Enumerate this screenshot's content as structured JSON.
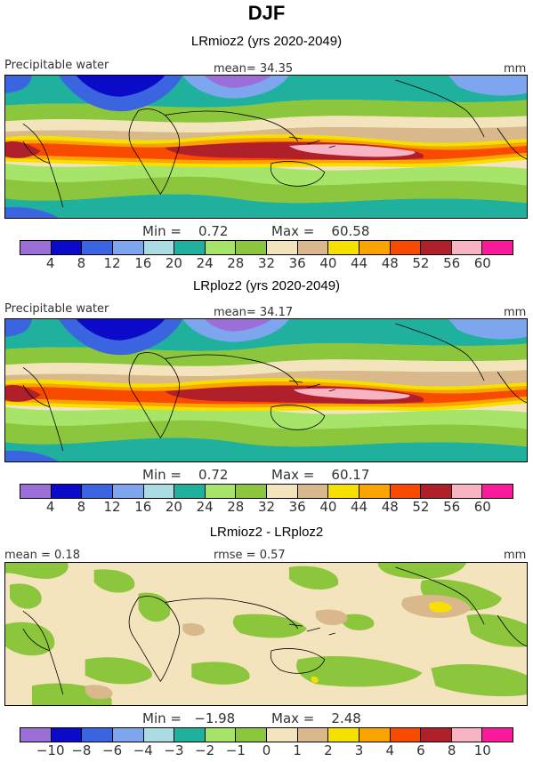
{
  "title": "DJF",
  "panels": [
    {
      "title": "LRmioz2 (yrs 2020-2049)",
      "left_label": "Precipitable water",
      "mean_text": "mean=  34.35",
      "units": "mm",
      "min_text": "Min =    0.72",
      "max_text": "Max =    60.58",
      "colorbar_ticks": [
        "4",
        "8",
        "12",
        "16",
        "20",
        "24",
        "28",
        "32",
        "36",
        "40",
        "44",
        "48",
        "52",
        "56",
        "60"
      ]
    },
    {
      "title": "LRploz2 (yrs 2020-2049)",
      "left_label": "Precipitable water",
      "mean_text": "mean=  34.17",
      "units": "mm",
      "min_text": "Min =    0.72",
      "max_text": "Max =    60.17",
      "colorbar_ticks": [
        "4",
        "8",
        "12",
        "16",
        "20",
        "24",
        "28",
        "32",
        "36",
        "40",
        "44",
        "48",
        "52",
        "56",
        "60"
      ]
    },
    {
      "title": "LRmioz2 - LRploz2",
      "left_label": "mean =    0.18",
      "mean_text": "rmse =    0.57",
      "units": "mm",
      "min_text": "Min =   −1.98",
      "max_text": "Max =    2.48",
      "colorbar_ticks": [
        "−10",
        "−8",
        "−6",
        "−4",
        "−3",
        "−2",
        "−1",
        "0",
        "1",
        "2",
        "3",
        "4",
        "6",
        "8",
        "10"
      ]
    }
  ],
  "colors": {
    "scale": [
      "#9b6ed8",
      "#0a0ac8",
      "#3a64e0",
      "#7ea6ee",
      "#a9dde3",
      "#1fb19d",
      "#a6e46a",
      "#8cc63c",
      "#f4e4bd",
      "#d9b98b",
      "#f5e000",
      "#f9a400",
      "#f94b00",
      "#b0202a",
      "#f9b4c4",
      "#fa1a9c"
    ],
    "diff_background": "#f4e4bd"
  }
}
